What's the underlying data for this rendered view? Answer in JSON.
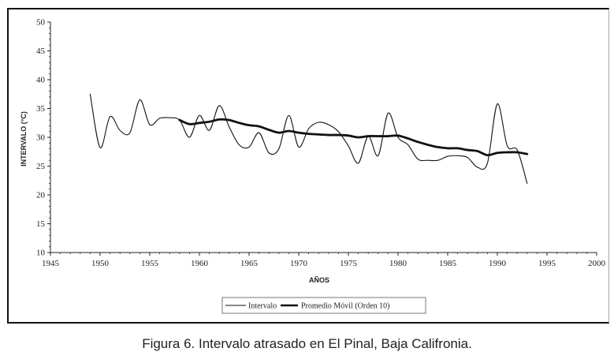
{
  "caption": "Figura 6. Intervalo atrasado en El Pinal, Baja Califronia.",
  "chart_data": {
    "type": "line",
    "xlabel": "AÑOS",
    "ylabel": "INTERVALO (°C)",
    "xlim": [
      1945,
      2000
    ],
    "ylim": [
      10,
      50
    ],
    "x_ticks": [
      "1945",
      "1950",
      "1955",
      "1960",
      "1965",
      "1970",
      "1975",
      "1980",
      "1985",
      "1990",
      "1995",
      "2000"
    ],
    "y_ticks": [
      "10",
      "15",
      "20",
      "25",
      "30",
      "35",
      "40",
      "45",
      "50"
    ],
    "grid": false,
    "legend_position": "bottom",
    "series": [
      {
        "name": "Intervalo",
        "color": "#111111",
        "x": [
          1949,
          1950,
          1951,
          1952,
          1953,
          1954,
          1955,
          1956,
          1957,
          1958,
          1959,
          1960,
          1961,
          1962,
          1963,
          1964,
          1965,
          1966,
          1967,
          1968,
          1969,
          1970,
          1971,
          1972,
          1973,
          1974,
          1975,
          1976,
          1977,
          1978,
          1979,
          1980,
          1981,
          1982,
          1983,
          1984,
          1985,
          1986,
          1987,
          1988,
          1989,
          1990,
          1991,
          1992,
          1993
        ],
        "y": [
          37.5,
          28.2,
          33.6,
          31.2,
          30.8,
          36.5,
          32.2,
          33.3,
          33.4,
          33.0,
          30.0,
          33.8,
          31.2,
          35.5,
          31.8,
          28.7,
          28.3,
          30.8,
          27.3,
          28.0,
          33.8,
          28.3,
          31.5,
          32.6,
          32.2,
          31.0,
          28.5,
          25.5,
          30.2,
          26.8,
          34.2,
          30.0,
          28.7,
          26.2,
          26.0,
          26.0,
          26.7,
          26.8,
          26.5,
          24.8,
          25.5,
          35.8,
          28.5,
          27.8,
          22.0
        ]
      },
      {
        "name": "Promedio Móvil (Orden 10)",
        "color": "#111111",
        "x": [
          1958,
          1959,
          1960,
          1961,
          1962,
          1963,
          1964,
          1965,
          1966,
          1967,
          1968,
          1969,
          1970,
          1971,
          1972,
          1973,
          1974,
          1975,
          1976,
          1977,
          1978,
          1979,
          1980,
          1981,
          1982,
          1983,
          1984,
          1985,
          1986,
          1987,
          1988,
          1989,
          1990,
          1991,
          1992,
          1993
        ],
        "y": [
          33.0,
          32.3,
          32.5,
          32.7,
          33.1,
          33.0,
          32.5,
          32.1,
          31.9,
          31.3,
          30.8,
          31.1,
          30.8,
          30.6,
          30.5,
          30.4,
          30.4,
          30.3,
          30.0,
          30.2,
          30.2,
          30.2,
          30.3,
          29.8,
          29.2,
          28.7,
          28.3,
          28.1,
          28.1,
          27.8,
          27.6,
          26.9,
          27.3,
          27.4,
          27.4,
          27.1
        ]
      }
    ]
  }
}
